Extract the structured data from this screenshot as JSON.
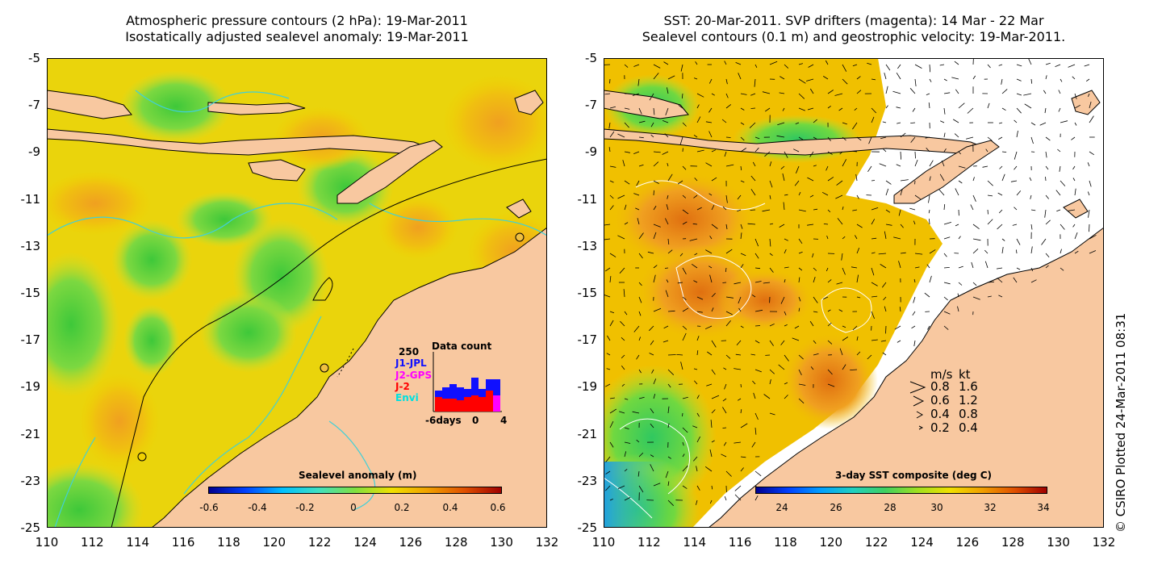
{
  "left_panel": {
    "title_line1": "Atmospheric pressure contours (2 hPa): 19-Mar-2011",
    "title_line2": "Isostatically adjusted sealevel anomaly: 19-Mar-2011",
    "colorbar": {
      "title": "Sealevel anomaly (m)",
      "ticks": [
        "-0.6",
        "-0.4",
        "-0.2",
        "0",
        "0.2",
        "0.4",
        "0.6"
      ]
    },
    "inset": {
      "title": "Data count",
      "max_label": "250",
      "series": [
        {
          "name": "J1-JPL",
          "color": "#1010ff"
        },
        {
          "name": "J2-GPS",
          "color": "#ff00ff"
        },
        {
          "name": "J-2",
          "color": "#ff0000"
        },
        {
          "name": "Envi",
          "color": "#00e0e0"
        }
      ],
      "x_labels": [
        "-6days",
        "0",
        "4"
      ]
    }
  },
  "right_panel": {
    "title_line1": "SST: 20-Mar-2011. SVP drifters (magenta): 14 Mar - 22 Mar",
    "title_line2": "Sealevel contours (0.1 m) and geostrophic velocity: 19-Mar-2011.",
    "colorbar": {
      "title": "3-day SST composite (deg C)",
      "ticks": [
        "24",
        "26",
        "28",
        "30",
        "32",
        "34"
      ]
    },
    "velocity_legend": {
      "header_ms": "m/s",
      "header_kt": "kt",
      "rows": [
        {
          "ms": "0.8",
          "kt": "1.6"
        },
        {
          "ms": "0.6",
          "kt": "1.2"
        },
        {
          "ms": "0.4",
          "kt": "0.8"
        },
        {
          "ms": "0.2",
          "kt": "0.4"
        }
      ]
    }
  },
  "axes": {
    "y_ticks": [
      "-5",
      "-7",
      "-9",
      "-11",
      "-13",
      "-15",
      "-17",
      "-19",
      "-21",
      "-23",
      "-25"
    ],
    "x_ticks": [
      "110",
      "112",
      "114",
      "116",
      "118",
      "120",
      "122",
      "124",
      "126",
      "128",
      "130",
      "132"
    ]
  },
  "copyright": "© CSIRO Plotted 24-Mar-2011 08:31",
  "colors": {
    "land": "#f8c8a0",
    "sea_green": "#5fd24a",
    "sea_yellow": "#f0d000",
    "sea_orange": "#f0a020",
    "coast_cyan": "#40d0d8"
  }
}
